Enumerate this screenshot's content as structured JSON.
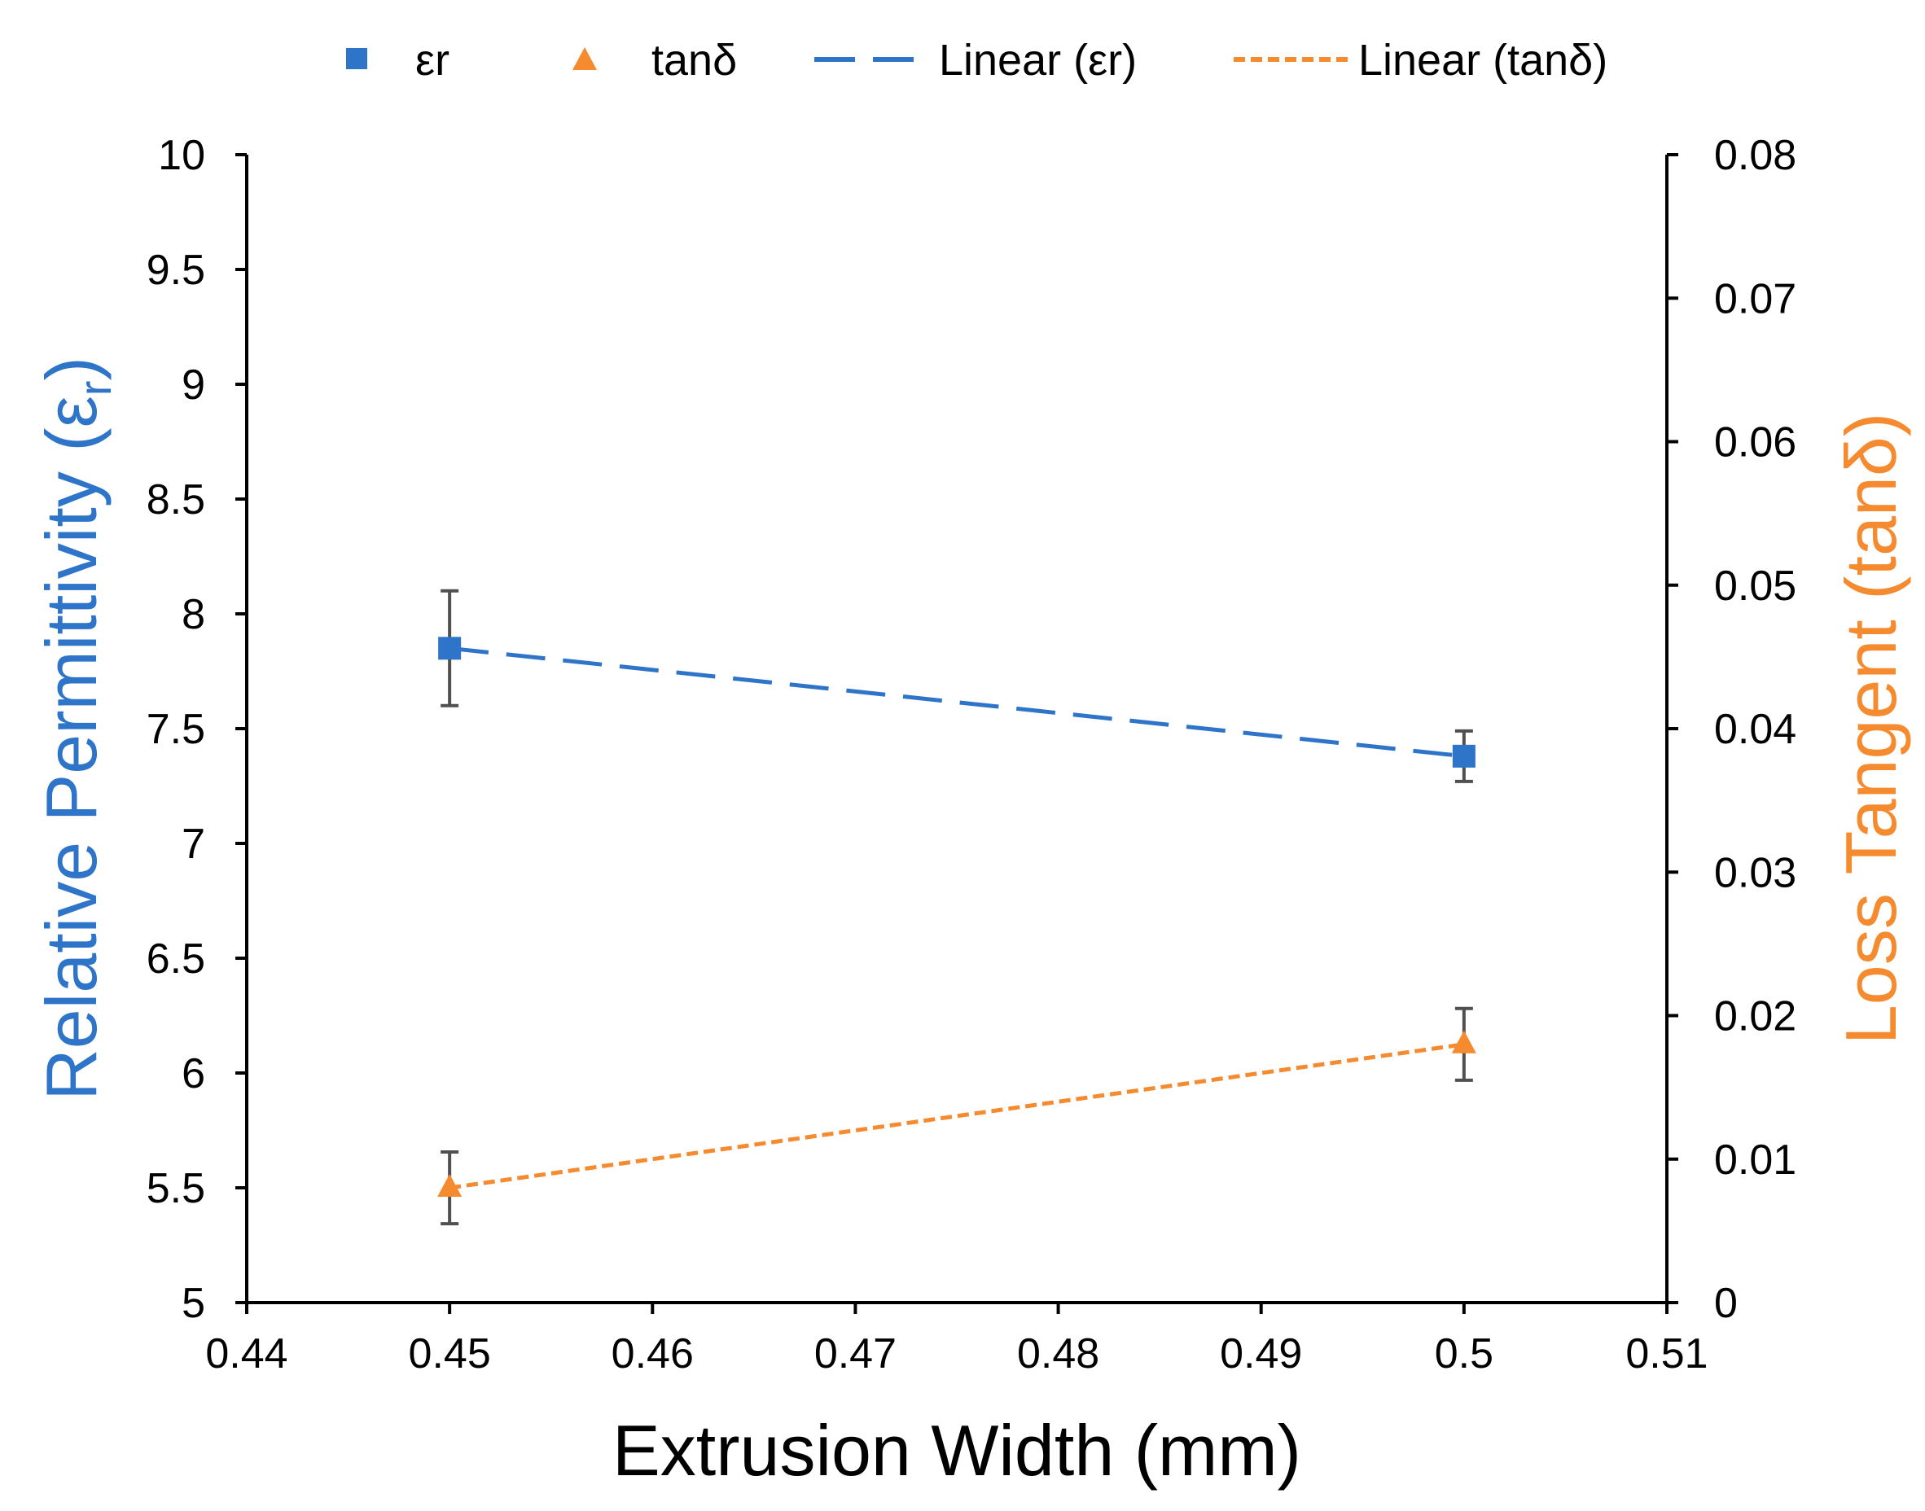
{
  "chart_data": {
    "type": "scatter",
    "xlabel": "Extrusion Width (mm)",
    "ylabel_left": {
      "text": "Relative Permittivity (ε",
      "subscript": "r",
      "suffix": ")",
      "color": "#2E75C9"
    },
    "ylabel_right": {
      "text": "Loss Tangent (tanδ)",
      "color": "#F58A2E"
    },
    "xlim": [
      0.44,
      0.51
    ],
    "x_ticks": [
      "0.44",
      "0.45",
      "0.46",
      "0.47",
      "0.48",
      "0.49",
      "0.5",
      "0.51"
    ],
    "x_tick_values": [
      0.44,
      0.45,
      0.46,
      0.47,
      0.48,
      0.49,
      0.5,
      0.51
    ],
    "ylim_left": [
      5,
      10
    ],
    "y_left_ticks": [
      "5",
      "5.5",
      "6",
      "6.5",
      "7",
      "7.5",
      "8",
      "8.5",
      "9",
      "9.5",
      "10"
    ],
    "y_left_tick_values": [
      5,
      5.5,
      6,
      6.5,
      7,
      7.5,
      8,
      8.5,
      9,
      9.5,
      10
    ],
    "ylim_right": [
      0,
      0.08
    ],
    "y_right_ticks": [
      "0",
      "0.01",
      "0.02",
      "0.03",
      "0.04",
      "0.05",
      "0.06",
      "0.07",
      "0.08"
    ],
    "y_right_tick_values": [
      0,
      0.01,
      0.02,
      0.03,
      0.04,
      0.05,
      0.06,
      0.07,
      0.08
    ],
    "grid": false,
    "legend_position": "top",
    "series": [
      {
        "name": "εr",
        "axis": "left",
        "marker": "square",
        "color": "#2E75C9",
        "x": [
          0.45,
          0.5
        ],
        "y": [
          7.85,
          7.38
        ],
        "error": [
          0.25,
          0.11
        ]
      },
      {
        "name": "tanδ",
        "axis": "right",
        "marker": "triangle",
        "color": "#F58A2E",
        "x": [
          0.45,
          0.5
        ],
        "y": [
          0.008,
          0.018
        ],
        "error": [
          0.0025,
          0.0025
        ]
      }
    ],
    "trendlines": [
      {
        "name": "Linear (εr)",
        "of_series": 0,
        "color": "#2E75C9",
        "style": "long-dash"
      },
      {
        "name": "Linear (tanδ)",
        "of_series": 1,
        "color": "#F58A2E",
        "style": "short-dash"
      }
    ],
    "error_bar_color": "#505050"
  }
}
